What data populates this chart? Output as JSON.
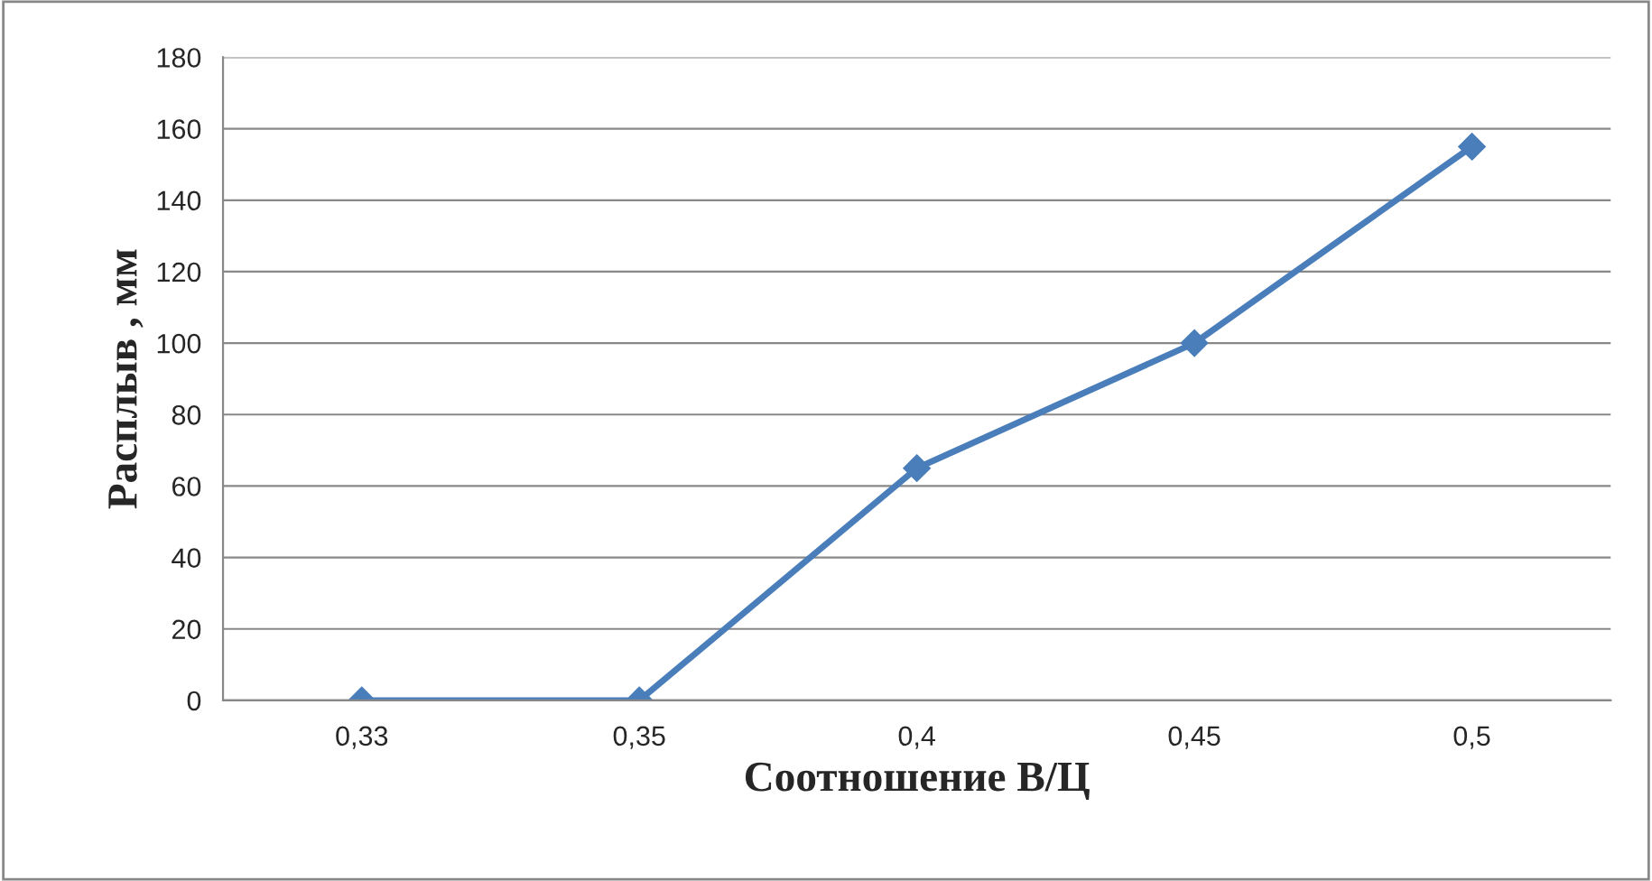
{
  "chart_data": {
    "type": "line",
    "xlabel": "Соотношение В/Ц",
    "ylabel": "Расплыв , мм",
    "categories": [
      "0,33",
      "0,35",
      "0,4",
      "0,45",
      "0,5"
    ],
    "series": [
      {
        "color": "#4a7ebb",
        "values": [
          0,
          0,
          65,
          100,
          155
        ]
      }
    ],
    "ylim": [
      0,
      180
    ],
    "yticks": [
      0,
      20,
      40,
      60,
      80,
      100,
      120,
      140,
      160,
      180
    ],
    "grid": "y",
    "marker": "diamond",
    "line_style": "solid",
    "legend": false
  }
}
